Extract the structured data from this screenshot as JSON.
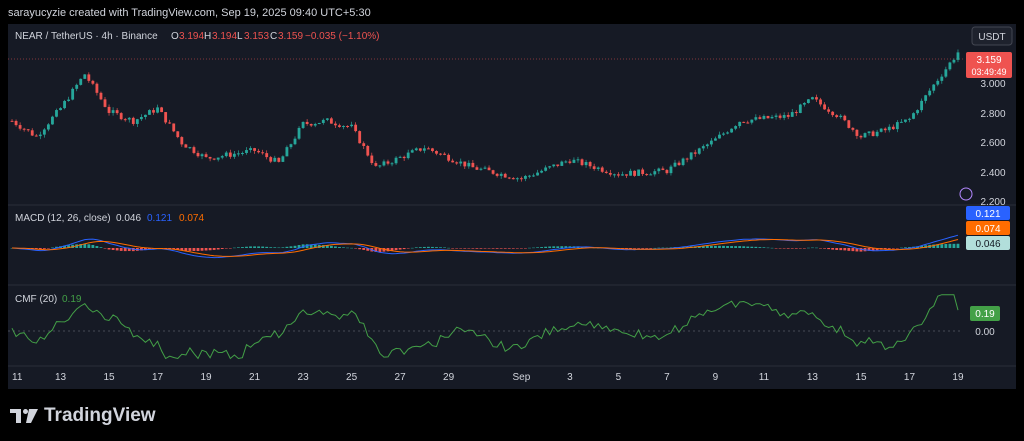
{
  "attribution": "sarayucyzie created with TradingView.com, Sep 19, 2025 09:40 UTC+5:30",
  "brand": "TradingView",
  "colors": {
    "bg": "#161a25",
    "up": "#26a69a",
    "down": "#ef5350",
    "macd": "#2962ff",
    "signal": "#ff6d00",
    "cmf": "#43a047",
    "text": "#d1d4dc"
  },
  "header": {
    "symbol": "NEAR / TetherUS · 4h · Binance",
    "o_label": "O",
    "o": "3.194",
    "h_label": "H",
    "h": "3.194",
    "l_label": "L",
    "l": "3.153",
    "c_label": "C",
    "c": "3.159",
    "change": "−0.035 (−1.10%)"
  },
  "currency_button": "USDT",
  "price_badge": {
    "price": "3.159",
    "countdown": "03:49:49"
  },
  "price_axis": [
    "3.000",
    "2.800",
    "2.600",
    "2.400",
    "2.200"
  ],
  "macd": {
    "label": "MACD (12, 26, close)",
    "hist": "0.046",
    "macd": "0.121",
    "signal": "0.074",
    "badges": [
      "0.121",
      "0.074",
      "0.046"
    ]
  },
  "cmf": {
    "label": "CMF (20)",
    "value": "0.19",
    "badge": "0.19",
    "zero": "0.00"
  },
  "time_axis": [
    "11",
    "13",
    "15",
    "17",
    "19",
    "21",
    "23",
    "25",
    "27",
    "29",
    "Sep",
    "3",
    "5",
    "7",
    "9",
    "11",
    "13",
    "15",
    "17",
    "19"
  ],
  "chart_data": {
    "type": "candlestick",
    "title": "NEAR / TetherUS · 4h · Binance",
    "x_range": [
      "Aug 11, 2025",
      "Sep 19, 2025"
    ],
    "ylim": [
      2.2,
      3.2
    ],
    "close_path_approx": [
      {
        "x": "Aug 11",
        "y": 2.72
      },
      {
        "x": "Aug 12",
        "y": 2.62
      },
      {
        "x": "Aug 13",
        "y": 2.8
      },
      {
        "x": "Aug 14",
        "y": 3.02
      },
      {
        "x": "Aug 15",
        "y": 2.78
      },
      {
        "x": "Aug 16",
        "y": 2.72
      },
      {
        "x": "Aug 17",
        "y": 2.8
      },
      {
        "x": "Aug 18",
        "y": 2.58
      },
      {
        "x": "Aug 19",
        "y": 2.48
      },
      {
        "x": "Aug 21",
        "y": 2.53
      },
      {
        "x": "Aug 22",
        "y": 2.45
      },
      {
        "x": "Aug 23",
        "y": 2.7
      },
      {
        "x": "Aug 24",
        "y": 2.72
      },
      {
        "x": "Aug 25",
        "y": 2.68
      },
      {
        "x": "Aug 26",
        "y": 2.42
      },
      {
        "x": "Aug 28",
        "y": 2.55
      },
      {
        "x": "Aug 30",
        "y": 2.42
      },
      {
        "x": "Sep 1",
        "y": 2.35
      },
      {
        "x": "Sep 3",
        "y": 2.47
      },
      {
        "x": "Sep 5",
        "y": 2.38
      },
      {
        "x": "Sep 7",
        "y": 2.4
      },
      {
        "x": "Sep 9",
        "y": 2.6
      },
      {
        "x": "Sep 10",
        "y": 2.72
      },
      {
        "x": "Sep 12",
        "y": 2.75
      },
      {
        "x": "Sep 13",
        "y": 2.86
      },
      {
        "x": "Sep 14",
        "y": 2.76
      },
      {
        "x": "Sep 15",
        "y": 2.62
      },
      {
        "x": "Sep 16",
        "y": 2.66
      },
      {
        "x": "Sep 17",
        "y": 2.73
      },
      {
        "x": "Sep 18",
        "y": 2.95
      },
      {
        "x": "Sep 19",
        "y": 3.159
      }
    ],
    "macd_latest": {
      "macd": 0.121,
      "signal": 0.074,
      "histogram": 0.046
    },
    "cmf_latest": 0.19
  }
}
